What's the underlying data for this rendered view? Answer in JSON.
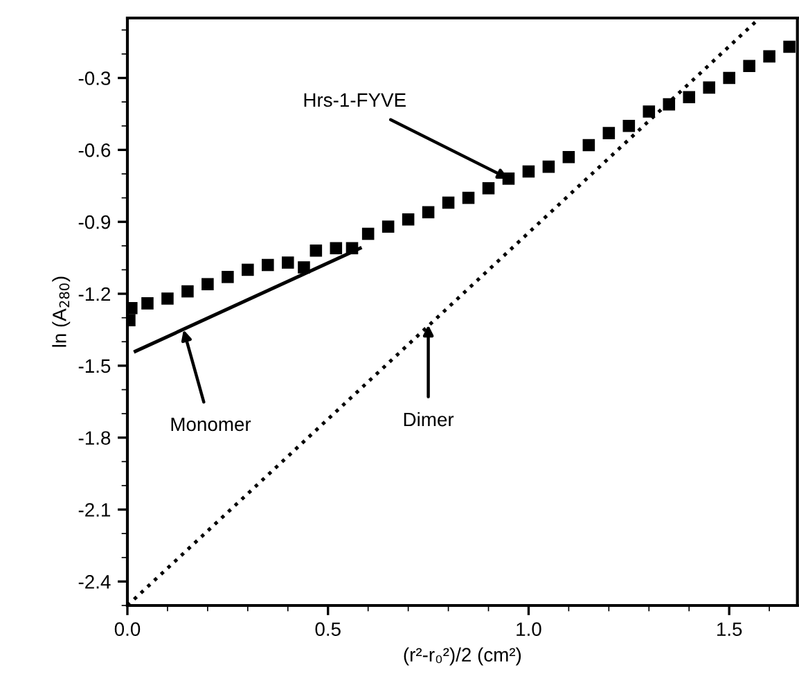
{
  "chart_data": {
    "type": "scatter",
    "xlabel": "(r²-r₀²)/2 (cm²)",
    "ylabel": "ln (A$_{280}$)",
    "xlim": [
      0,
      1.67
    ],
    "ylim": [
      -2.5,
      -0.05
    ],
    "xticks": [
      {
        "value": 0,
        "label": "0.0"
      },
      {
        "value": 0.5,
        "label": "0.5"
      },
      {
        "value": 1.0,
        "label": "1.0"
      },
      {
        "value": 1.5,
        "label": "1.5"
      }
    ],
    "yticks": [
      {
        "value": -2.4,
        "label": "-2.4"
      },
      {
        "value": -2.1,
        "label": "-2.1"
      },
      {
        "value": -1.8,
        "label": "-1.8"
      },
      {
        "value": -1.5,
        "label": "-1.5"
      },
      {
        "value": -1.2,
        "label": "-1.2"
      },
      {
        "value": -0.9,
        "label": "-0.9"
      },
      {
        "value": -0.6,
        "label": "-0.6"
      },
      {
        "value": -0.3,
        "label": "-0.3"
      }
    ],
    "grid": false,
    "legend": false,
    "series": [
      {
        "marker": "square",
        "color": "#000000",
        "x": [
          0.005,
          0.01,
          0.05,
          0.1,
          0.15,
          0.2,
          0.25,
          0.3,
          0.35,
          0.4,
          0.44,
          0.47,
          0.52,
          0.56,
          0.6,
          0.65,
          0.7,
          0.75,
          0.8,
          0.85,
          0.9,
          0.95,
          1.0,
          1.05,
          1.1,
          1.15,
          1.2,
          1.25,
          1.3,
          1.35,
          1.4,
          1.45,
          1.5,
          1.55,
          1.6,
          1.65
        ],
        "values": [
          -1.31,
          -1.26,
          -1.24,
          -1.22,
          -1.19,
          -1.16,
          -1.13,
          -1.1,
          -1.08,
          -1.07,
          -1.09,
          -1.02,
          -1.01,
          -1.01,
          -0.95,
          -0.92,
          -0.89,
          -0.86,
          -0.82,
          -0.8,
          -0.76,
          -0.72,
          -0.69,
          -0.67,
          -0.63,
          -0.58,
          -0.53,
          -0.5,
          -0.44,
          -0.41,
          -0.38,
          -0.34,
          -0.3,
          -0.25,
          -0.21,
          -0.17
        ]
      },
      {
        "type": "line",
        "line_style": "solid",
        "color": "#000000",
        "x": [
          0.02,
          0.58
        ],
        "values": [
          -1.44,
          -1.01
        ]
      },
      {
        "type": "line",
        "line_style": "dotted",
        "color": "#000000",
        "x": [
          0.0,
          1.576
        ],
        "values": [
          -2.5,
          -0.05
        ]
      }
    ],
    "annotations": [
      {
        "text": "Hrs-1-FYVE",
        "x": 0.95,
        "y": -0.72
      },
      {
        "text": "Monomer",
        "x": 0.14,
        "y": -1.35
      },
      {
        "text": "Dimer",
        "x": 0.75,
        "y": -1.33
      }
    ]
  }
}
